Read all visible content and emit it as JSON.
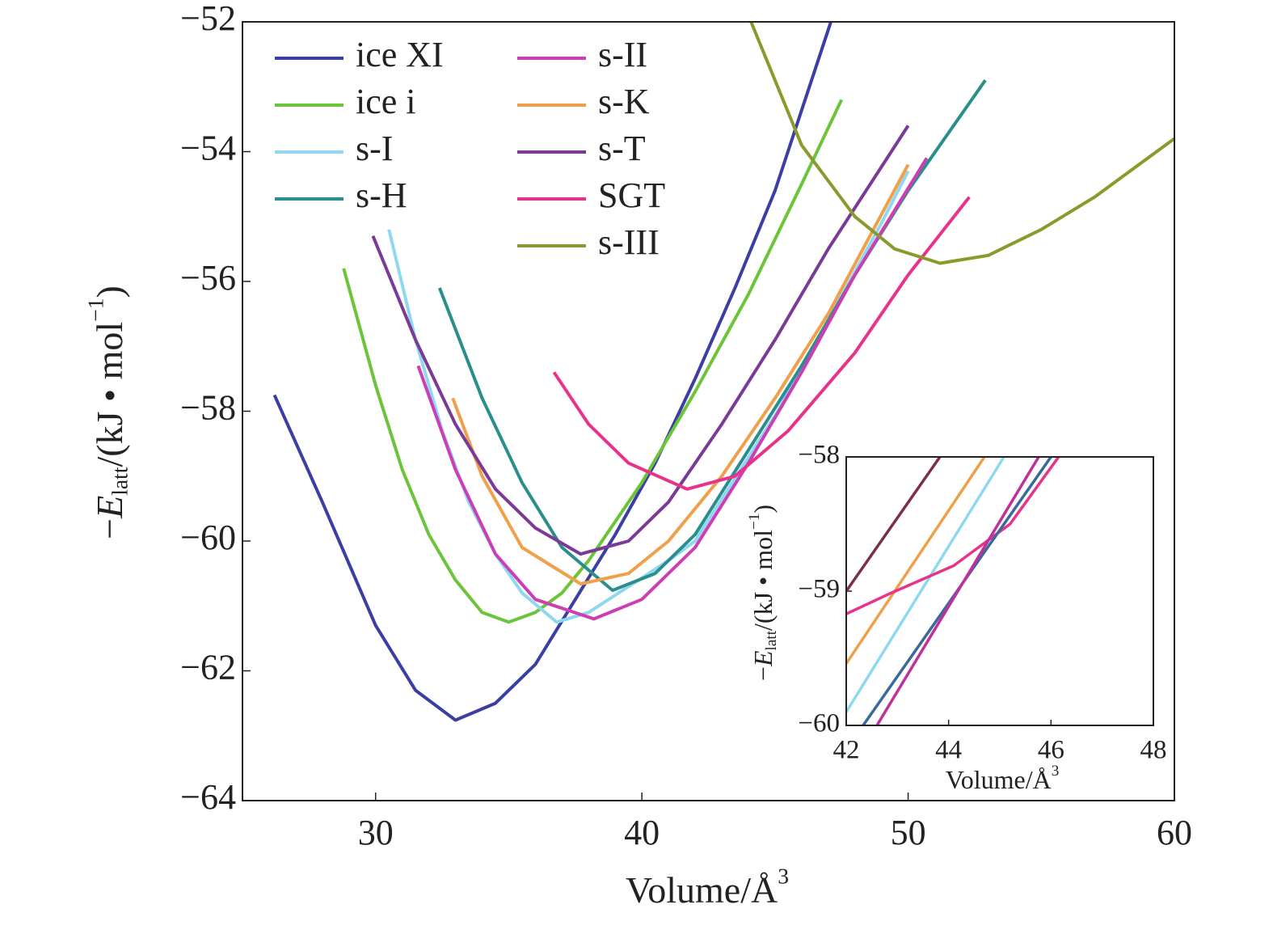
{
  "chart_data": [
    {
      "type": "line",
      "xlabel": [
        "Volume/Å",
        "3"
      ],
      "ylabel": [
        "−",
        "E",
        "latt",
        "/(kJ • mol",
        "−1",
        ")"
      ],
      "xlim": [
        25,
        60
      ],
      "ylim": [
        -64,
        -52
      ],
      "xticks": [
        30,
        40,
        50,
        60
      ],
      "yticks": [
        {
          "value": -64,
          "label": "−64"
        },
        {
          "value": -62,
          "label": "−62"
        },
        {
          "value": -60,
          "label": "−60"
        },
        {
          "value": -58,
          "label": "−58"
        },
        {
          "value": -56,
          "label": "−56"
        },
        {
          "value": -54,
          "label": "−54"
        },
        {
          "value": -52,
          "label": "−52"
        }
      ],
      "legend": "upper left",
      "series": [
        {
          "name": "ice XI",
          "color": "#3b3fa3",
          "x": [
            26.2,
            28,
            30,
            31.5,
            33,
            34.5,
            36,
            37.5,
            39,
            40.5,
            42,
            43.5,
            45,
            47.1
          ],
          "values": [
            -57.75,
            -59.4,
            -61.3,
            -62.3,
            -62.76,
            -62.5,
            -61.9,
            -60.9,
            -59.9,
            -58.8,
            -57.5,
            -56.1,
            -54.6,
            -52
          ]
        },
        {
          "name": "ice i",
          "color": "#6cc43a",
          "x": [
            28.8,
            30,
            31,
            32,
            33,
            34,
            35,
            36,
            37,
            38,
            40,
            42,
            44,
            46,
            47.5
          ],
          "values": [
            -55.8,
            -57.6,
            -58.9,
            -59.9,
            -60.6,
            -61.1,
            -61.25,
            -61.1,
            -60.8,
            -60.3,
            -59.1,
            -57.7,
            -56.2,
            -54.5,
            -53.2
          ]
        },
        {
          "name": "s-I",
          "color": "#8fd8f0",
          "x": [
            30.5,
            31.5,
            32.5,
            33.5,
            34.5,
            35.5,
            36.8,
            38,
            39.5,
            41,
            42,
            45.1,
            47,
            49,
            50
          ],
          "values": [
            -55.2,
            -56.9,
            -58.3,
            -59.4,
            -60.2,
            -60.8,
            -61.25,
            -61.1,
            -60.7,
            -60.3,
            -60,
            -58,
            -56.6,
            -55.1,
            -54.3
          ]
        },
        {
          "name": "s-H",
          "color": "#2a8f8c",
          "x": [
            32.4,
            34,
            35.5,
            37,
            38.9,
            40.5,
            42,
            44,
            46,
            48,
            50,
            52.9
          ],
          "values": [
            -56.1,
            -57.8,
            -59.1,
            -60.1,
            -60.76,
            -60.5,
            -59.9,
            -58.6,
            -57.3,
            -55.9,
            -54.6,
            -52.9
          ]
        },
        {
          "name": "s-II",
          "color": "#cc3fb4",
          "x": [
            31.6,
            33,
            34.5,
            36,
            38.2,
            40,
            42,
            44,
            46,
            48,
            50.7
          ],
          "values": [
            -57.3,
            -58.9,
            -60.2,
            -60.9,
            -61.2,
            -60.9,
            -60.1,
            -58.8,
            -57.4,
            -55.9,
            -54.1
          ]
        },
        {
          "name": "s-K",
          "color": "#f0a04a",
          "x": [
            32.9,
            34,
            35.5,
            37.7,
            39.5,
            41,
            43,
            45,
            47,
            50
          ],
          "values": [
            -57.8,
            -59,
            -60.1,
            -60.66,
            -60.5,
            -60,
            -59,
            -57.8,
            -56.5,
            -54.2
          ]
        },
        {
          "name": "s-T",
          "color": "#7a3a95",
          "x": [
            29.9,
            31.5,
            33,
            34.5,
            36,
            37.7,
            39.5,
            41,
            43,
            45,
            47,
            50
          ],
          "values": [
            -55.3,
            -56.9,
            -58.2,
            -59.2,
            -59.8,
            -60.2,
            -60,
            -59.4,
            -58.2,
            -56.9,
            -55.5,
            -53.6
          ]
        },
        {
          "name": "SGT",
          "color": "#e8338a",
          "x": [
            36.7,
            38,
            39.5,
            41.7,
            43.5,
            45.5,
            48,
            50,
            52.3
          ],
          "values": [
            -57.4,
            -58.2,
            -58.8,
            -59.2,
            -59,
            -58.3,
            -57.1,
            -55.9,
            -54.7
          ]
        },
        {
          "name": "s-III",
          "color": "#8a9a2c",
          "x": [
            44.1,
            46,
            48,
            49.5,
            51.2,
            53,
            55,
            57,
            60
          ],
          "values": [
            -52,
            -53.9,
            -55,
            -55.5,
            -55.72,
            -55.6,
            -55.2,
            -54.7,
            -53.8
          ]
        }
      ]
    },
    {
      "type": "line",
      "xlabel": [
        "Volume/Å",
        "3"
      ],
      "ylabel": [
        "−",
        "E",
        "latt",
        "/(kJ • mol",
        "−1",
        ")"
      ],
      "xlim": [
        42,
        48
      ],
      "ylim": [
        -60,
        -58
      ],
      "xticks": [
        42,
        44,
        46,
        48
      ],
      "yticks": [
        {
          "value": -60,
          "label": "−60"
        },
        {
          "value": -59,
          "label": "−59"
        },
        {
          "value": -58,
          "label": "−58"
        }
      ],
      "series": [
        {
          "color": "#7a2f4a",
          "x": [
            42,
            43.83
          ],
          "values": [
            -59,
            -58
          ]
        },
        {
          "color": "#f0a04a",
          "x": [
            42,
            44.7
          ],
          "values": [
            -59.54,
            -58
          ]
        },
        {
          "color": "#8fd8f0",
          "x": [
            42,
            45.08
          ],
          "values": [
            -59.9,
            -58
          ]
        },
        {
          "color": "#e8338a",
          "x": [
            42,
            42.84,
            44.1,
            45.2,
            46.15
          ],
          "values": [
            -59.17,
            -59.02,
            -58.81,
            -58.5,
            -58
          ]
        },
        {
          "color": "#3a6a9a",
          "x": [
            42.33,
            46
          ],
          "values": [
            -60,
            -58
          ]
        },
        {
          "color": "#c0309a",
          "x": [
            42.6,
            45.76
          ],
          "values": [
            -60,
            -58
          ]
        }
      ]
    }
  ]
}
